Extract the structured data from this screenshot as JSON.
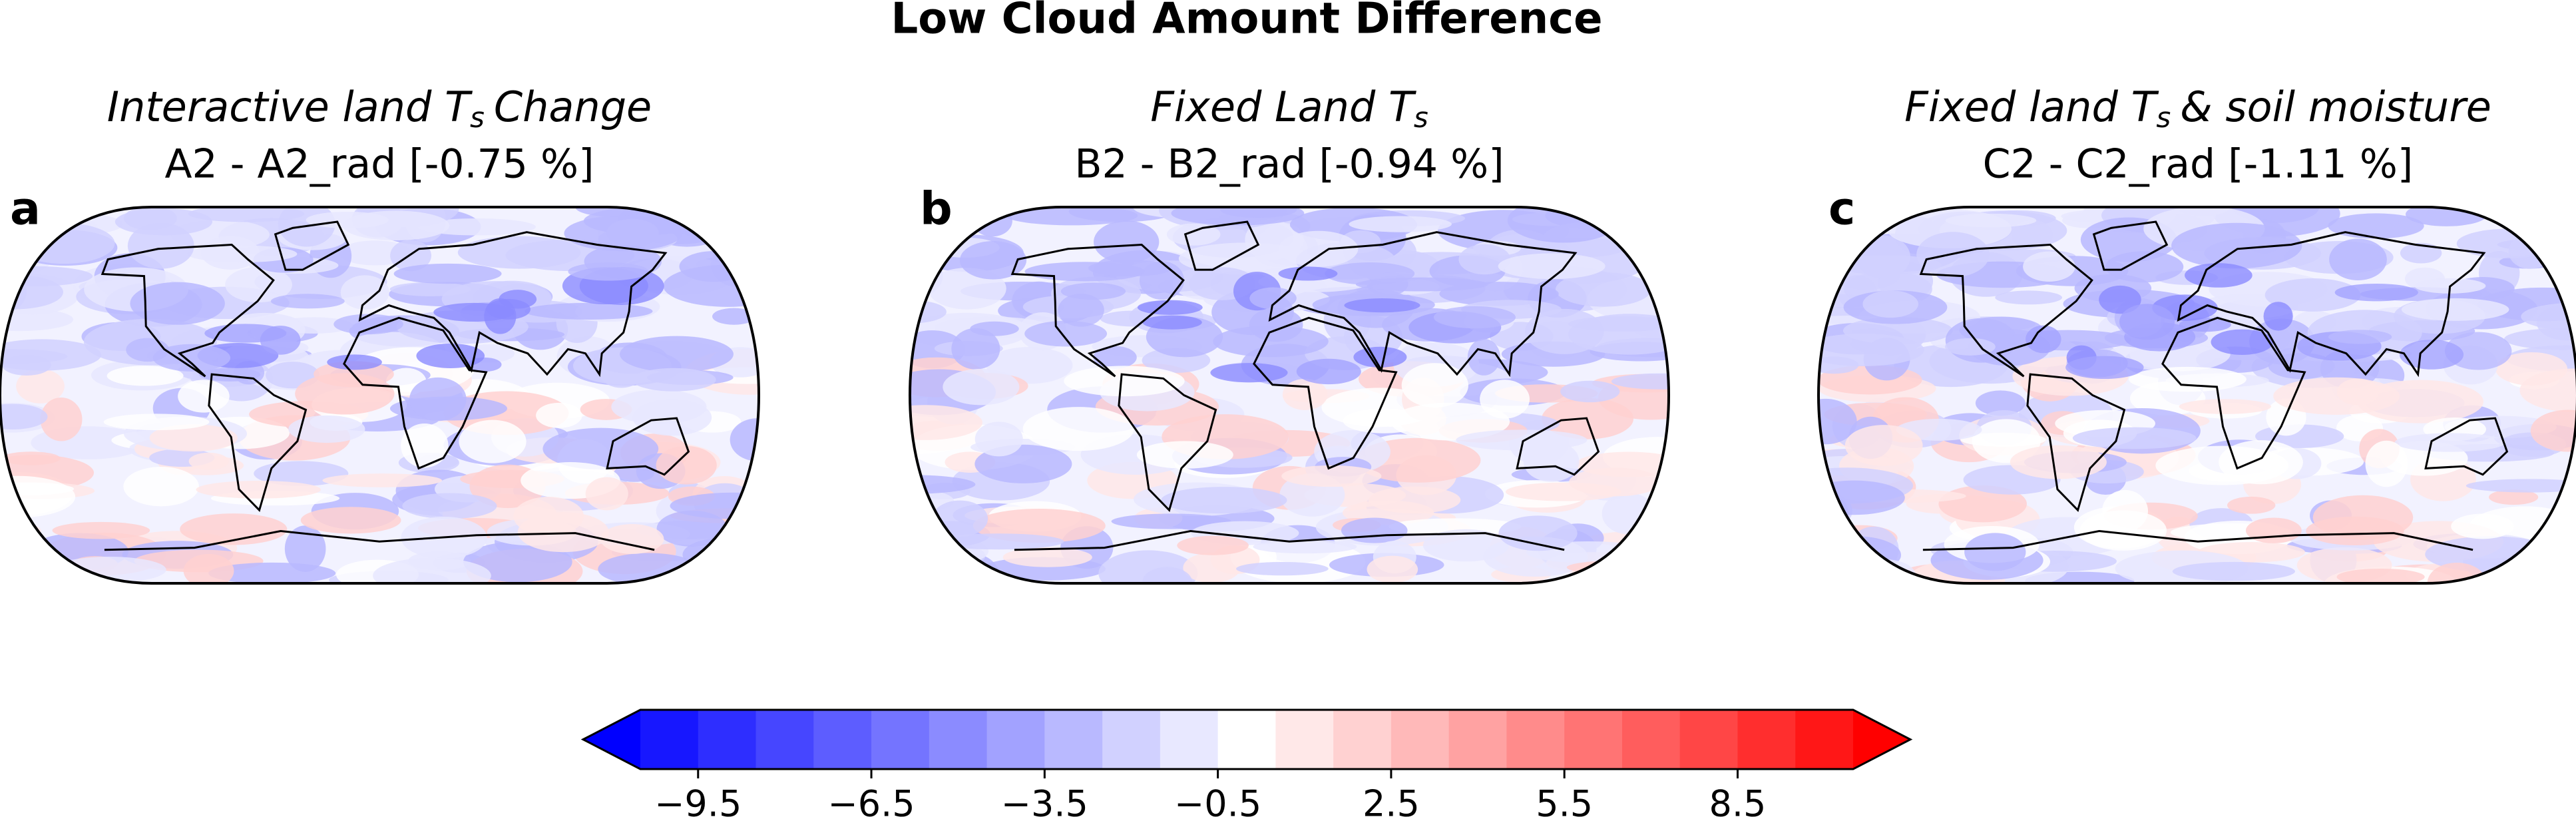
{
  "title": "Low Cloud Amount Difference",
  "panels": [
    {
      "label": "a",
      "title": {
        "prefix": "Interactive land",
        "symbol": "T",
        "subscript": "s",
        "suffix": "Change"
      },
      "subtitle": "A2 - A2_rad [-0.75 %]"
    },
    {
      "label": "b",
      "title": {
        "prefix": "Fixed Land",
        "symbol": "T",
        "subscript": "s",
        "suffix": ""
      },
      "subtitle": "B2 - B2_rad [-0.94 %]"
    },
    {
      "label": "c",
      "title": {
        "prefix": "Fixed land",
        "symbol": "T",
        "subscript": "s",
        "suffix": "& soil moisture"
      },
      "subtitle": "C2 - C2_rad [-1.11 %]"
    }
  ],
  "colorbar": {
    "lim": [
      -10.5,
      10.5
    ],
    "colors": [
      "#1717ff",
      "#2e2eff",
      "#4646ff",
      "#5d5dff",
      "#7474ff",
      "#8b8bff",
      "#a2a2ff",
      "#b9b9ff",
      "#d1d1ff",
      "#e8e8ff",
      "#ffffff",
      "#ffe8e8",
      "#ffd1d1",
      "#ffb9b9",
      "#ffa2a2",
      "#ff8b8b",
      "#ff7474",
      "#ff5d5d",
      "#ff4646",
      "#ff2e2e",
      "#ff1717"
    ],
    "under_color": "#0000ff",
    "over_color": "#ff0000",
    "ticks": [
      {
        "value": -9.5,
        "label": "−9.5"
      },
      {
        "value": -6.5,
        "label": "−6.5"
      },
      {
        "value": -3.5,
        "label": "−3.5"
      },
      {
        "value": -0.5,
        "label": "−0.5"
      },
      2.5,
      5.5,
      8.5
    ]
  }
}
